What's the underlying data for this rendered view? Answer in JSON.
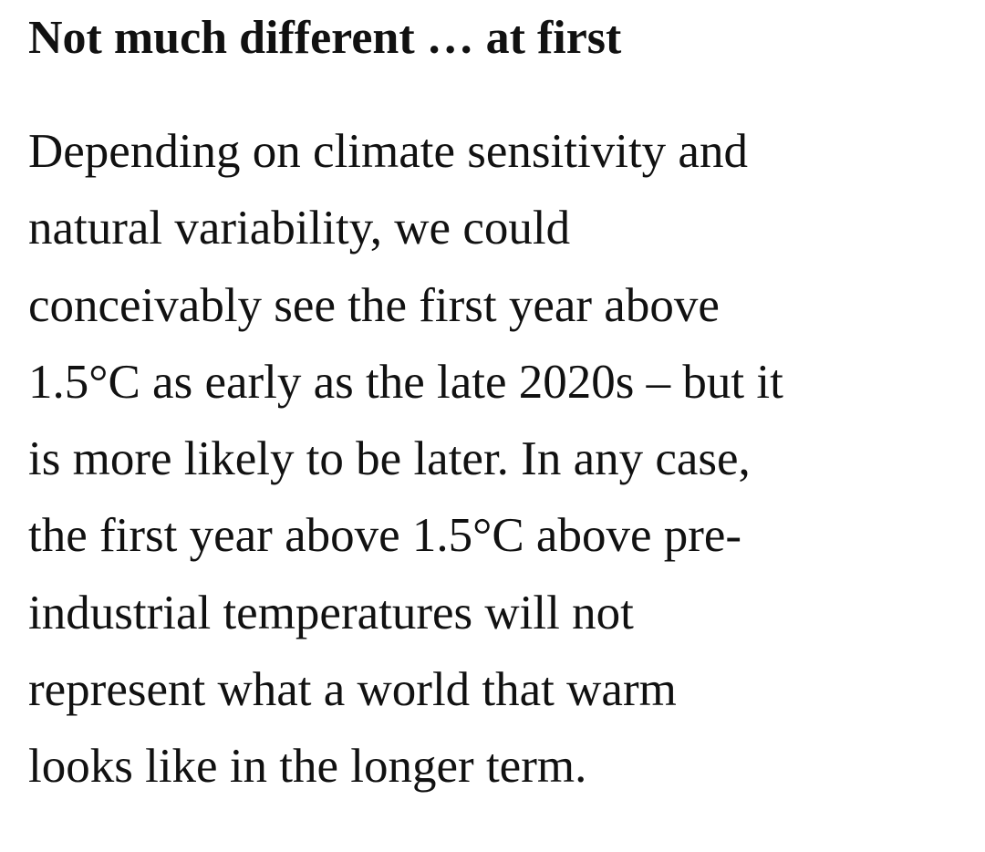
{
  "article": {
    "heading": "Not much different … at first",
    "paragraph_lines": [
      "Depending on climate sensitivity and",
      "natural variability, we could",
      "conceivably see the first year above",
      "1.5°C as early as the late 2020s – but it",
      "is more likely to be later. In any case,",
      "the first year above 1.5°C above pre-",
      "industrial temperatures will not",
      "represent what a world that warm",
      "looks like in the longer term."
    ]
  }
}
